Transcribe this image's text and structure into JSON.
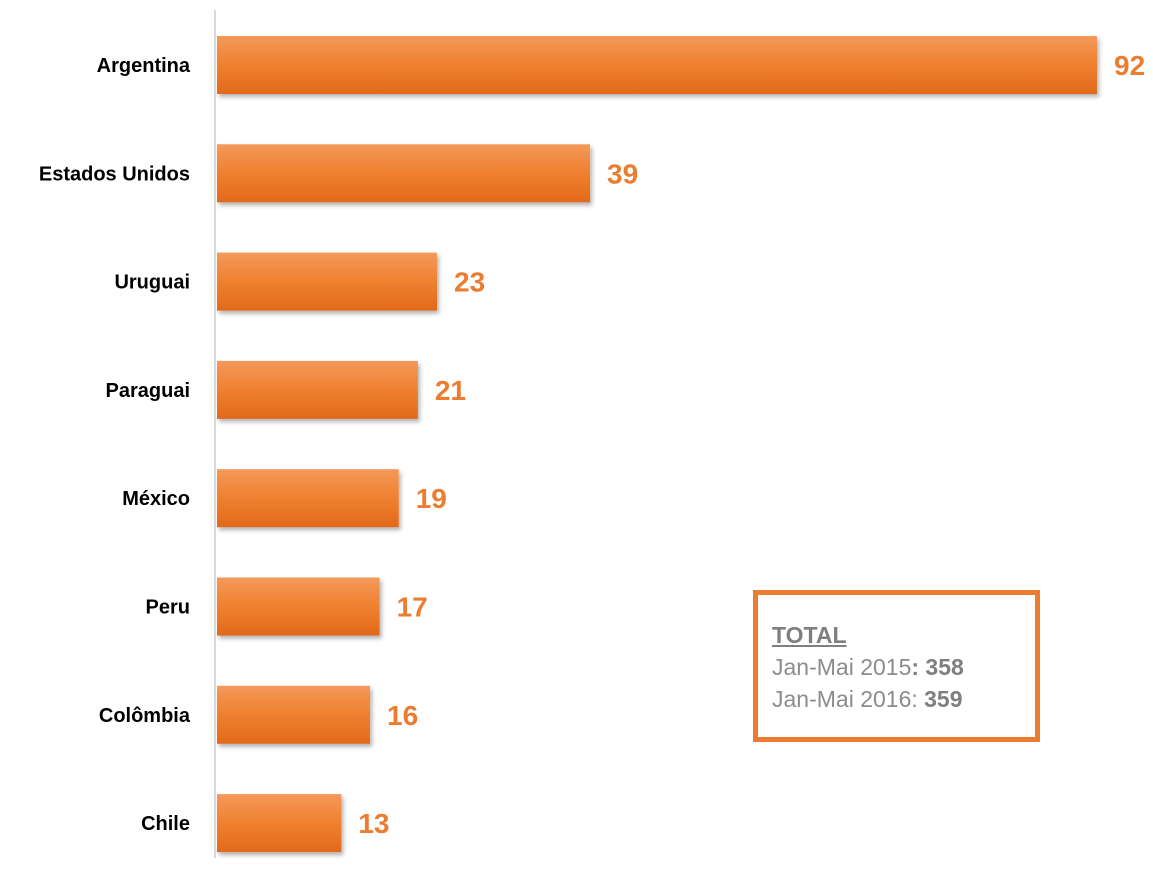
{
  "chart_data": {
    "type": "bar",
    "orientation": "horizontal",
    "categories": [
      "Argentina",
      "Estados Unidos",
      "Uruguai",
      "Paraguai",
      "México",
      "Peru",
      "Colômbia",
      "Chile"
    ],
    "values": [
      92,
      39,
      23,
      21,
      19,
      17,
      16,
      13
    ],
    "title": "",
    "xlabel": "",
    "ylabel": "",
    "xlim": [
      0,
      92
    ],
    "grid": false,
    "legend": "none",
    "bar_color": "#ec7c30",
    "label_color": "#ec7c30"
  },
  "total_box": {
    "heading": "TOTAL",
    "line1_label": "Jan-Mai 2015",
    "line1_value": "358",
    "line2_label": "Jan-Mai 2016",
    "line2_value": "359",
    "border_color": "#ec7c30"
  }
}
